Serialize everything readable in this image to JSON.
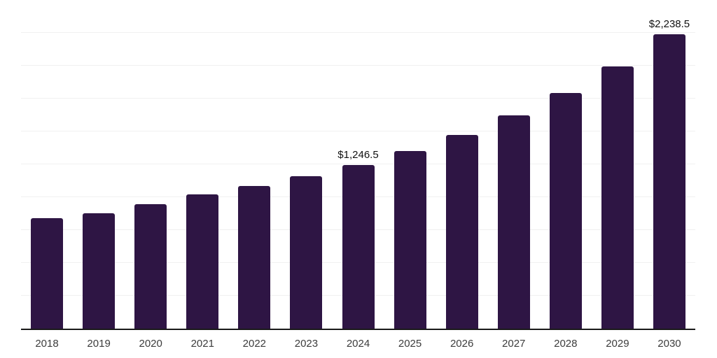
{
  "chart_data": {
    "type": "bar",
    "title": "",
    "xlabel": "",
    "ylabel": "",
    "categories": [
      "2018",
      "2019",
      "2020",
      "2021",
      "2022",
      "2023",
      "2024",
      "2025",
      "2026",
      "2027",
      "2028",
      "2029",
      "2030"
    ],
    "values": [
      840,
      880,
      948,
      1020,
      1086,
      1161,
      1246.5,
      1349,
      1472,
      1621,
      1791,
      1993,
      2238.5
    ],
    "data_labels": [
      "",
      "",
      "",
      "",
      "",
      "",
      "$1,246.5",
      "",
      "",
      "",
      "",
      "",
      "$2,238.5"
    ],
    "ylim": [
      0,
      2500
    ],
    "gridline_interval": 250,
    "grid": "horizontal",
    "legend_position": "none",
    "colors": {
      "bar": "#2e1544",
      "gridline": "#f0f0f0",
      "axis_line": "#1a1a1a",
      "tick_label": "#3c3c3c",
      "data_label": "#111111",
      "background": "#ffffff"
    }
  }
}
